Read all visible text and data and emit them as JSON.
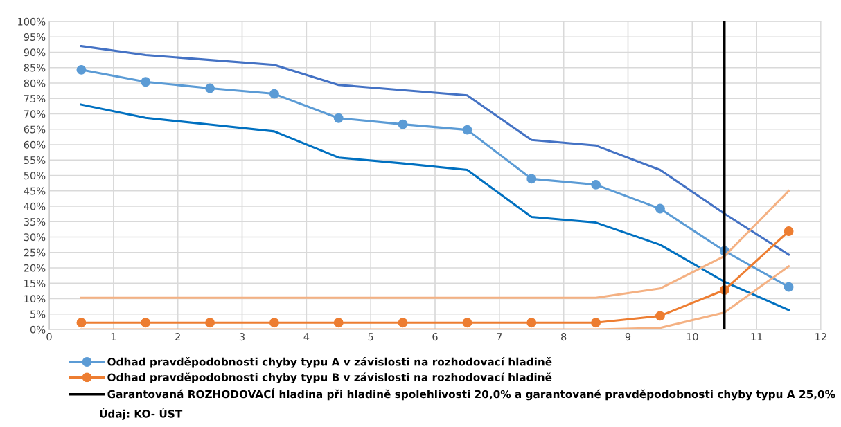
{
  "chart_data": {
    "type": "line",
    "x": [
      0.5,
      1.5,
      2.5,
      3.5,
      4.5,
      5.5,
      6.5,
      7.5,
      8.5,
      9.5,
      10.5,
      11.5
    ],
    "series": [
      {
        "color": "#4472c4",
        "marker": "none",
        "values": [
          92.0,
          89.1,
          87.5,
          85.9,
          79.4,
          77.7,
          76.0,
          61.5,
          59.7,
          51.8,
          37.6,
          24.3
        ]
      },
      {
        "color": "#0070c0",
        "marker": "none",
        "values": [
          73.0,
          68.7,
          66.5,
          64.3,
          55.8,
          53.9,
          51.8,
          36.5,
          34.7,
          27.5,
          15.5,
          6.3
        ]
      },
      {
        "name": "Odhad pravděpodobnosti chyby typu A v závislosti na rozhodovací hladině",
        "color": "#5b9bd5",
        "marker": "circle",
        "values": [
          84.3,
          80.4,
          78.3,
          76.5,
          68.6,
          66.6,
          64.8,
          48.9,
          47.0,
          39.2,
          25.5,
          13.8
        ]
      },
      {
        "color": "#f4b183",
        "marker": "none",
        "values": [
          10.3,
          10.3,
          10.3,
          10.3,
          10.3,
          10.3,
          10.3,
          10.3,
          10.3,
          13.3,
          23.8,
          45.0
        ]
      },
      {
        "color": "#f4b183",
        "marker": "none",
        "values": [
          0,
          0,
          0,
          0,
          0,
          0,
          0,
          0,
          0,
          0.5,
          5.5,
          20.5
        ]
      },
      {
        "name": "Odhad pravděpodobnosti chyby typu B v závislosti na rozhodovací hladině",
        "color": "#ed7d31",
        "marker": "circle",
        "values": [
          2.2,
          2.2,
          2.2,
          2.2,
          2.2,
          2.2,
          2.2,
          2.2,
          2.2,
          4.4,
          12.8,
          31.9
        ]
      }
    ],
    "ref_lines": [
      {
        "axis": "x",
        "value": 10.5,
        "label": "Garantovaná ROZHODOVACÍ hladina při hladině spolehlivosti 20,0% a garantované pravděpodobnosti chyby typu A 25,0%",
        "color": "#000000"
      }
    ],
    "annotations": [
      "Údaj: KO- ÚST"
    ],
    "xlim": [
      0,
      12
    ],
    "xticks": [
      0,
      1,
      2,
      3,
      4,
      5,
      6,
      7,
      8,
      9,
      10,
      11,
      12
    ],
    "ylim": [
      0,
      100
    ],
    "yticks": [
      {
        "value": 0,
        "label": "0%"
      },
      {
        "value": 5,
        "label": "5%"
      },
      {
        "value": 10,
        "label": "10%"
      },
      {
        "value": 15,
        "label": "15%"
      },
      {
        "value": 20,
        "label": "20%"
      },
      {
        "value": 25,
        "label": "25%"
      },
      {
        "value": 30,
        "label": "30%"
      },
      {
        "value": 35,
        "label": "35%"
      },
      {
        "value": 40,
        "label": "40%"
      },
      {
        "value": 45,
        "label": "45%"
      },
      {
        "value": 50,
        "label": "50%"
      },
      {
        "value": 55,
        "label": "55%"
      },
      {
        "value": 60,
        "label": "60%"
      },
      {
        "value": 65,
        "label": "65%"
      },
      {
        "value": 70,
        "label": "70%"
      },
      {
        "value": 75,
        "label": "75%"
      },
      {
        "value": 80,
        "label": "80%"
      },
      {
        "value": 85,
        "label": "85%"
      },
      {
        "value": 90,
        "label": "90%"
      },
      {
        "value": 95,
        "label": "95%"
      },
      {
        "value": 100,
        "label": "100%"
      }
    ],
    "grid": true,
    "legend": "bottom",
    "line_style": "solid"
  }
}
